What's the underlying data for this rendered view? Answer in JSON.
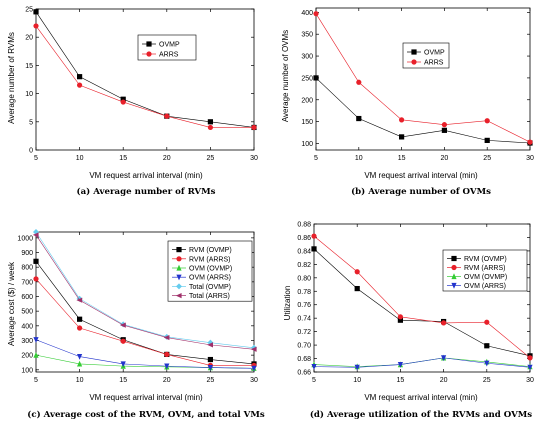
{
  "chart_data": [
    {
      "type": "line",
      "id": "a",
      "caption": "(a) Average number of RVMs",
      "xlabel": "VM request arrival interval (min)",
      "ylabel": "Average number of RVMs",
      "x": [
        5,
        10,
        15,
        20,
        25,
        30
      ],
      "xlim": [
        5,
        30
      ],
      "xticks": [
        5,
        10,
        15,
        20,
        25,
        30
      ],
      "ylim": [
        0,
        25
      ],
      "yticks": [
        0,
        5,
        10,
        15,
        20,
        25
      ],
      "legend_position": "top-right",
      "grid": false,
      "series": [
        {
          "name": "OVMP",
          "values": [
            24.5,
            13,
            9,
            6,
            5,
            4
          ],
          "color": "#000000",
          "marker": "square"
        },
        {
          "name": "ARRS",
          "values": [
            22,
            11.5,
            8.5,
            6,
            4,
            4
          ],
          "color": "#e8202a",
          "marker": "circle"
        }
      ]
    },
    {
      "type": "line",
      "id": "b",
      "caption": "(b) Average number of OVMs",
      "xlabel": "VM request arrival interval (min)",
      "ylabel": "Average number of OVMs",
      "x": [
        5,
        10,
        15,
        20,
        25,
        30
      ],
      "xlim": [
        5,
        30
      ],
      "xticks": [
        5,
        10,
        15,
        20,
        25,
        30
      ],
      "ylim": [
        85,
        410
      ],
      "yticks": [
        100,
        150,
        200,
        250,
        300,
        350,
        400
      ],
      "legend_position": "top-right",
      "grid": false,
      "series": [
        {
          "name": "OVMP",
          "values": [
            250,
            157,
            115,
            130,
            107,
            101
          ],
          "color": "#000000",
          "marker": "square"
        },
        {
          "name": "ARRS",
          "values": [
            397,
            240,
            154,
            143,
            152,
            103
          ],
          "color": "#e8202a",
          "marker": "circle"
        }
      ]
    },
    {
      "type": "line",
      "id": "c",
      "caption": "(c) Average cost of the RVM, OVM, and total VMs",
      "xlabel": "VM request arrival interval (min)",
      "ylabel": "Average cost ($) / week",
      "x": [
        5,
        10,
        15,
        20,
        25,
        30
      ],
      "xlim": [
        5,
        30
      ],
      "xticks": [
        5,
        10,
        15,
        20,
        25,
        30
      ],
      "ylim": [
        85,
        1040
      ],
      "yticks": [
        100,
        200,
        300,
        400,
        500,
        600,
        700,
        800,
        900,
        1000
      ],
      "legend_position": "top-right",
      "grid": false,
      "series": [
        {
          "name": "RVM (OVMP)",
          "values": [
            840,
            445,
            305,
            205,
            170,
            140
          ],
          "color": "#000000",
          "marker": "square"
        },
        {
          "name": "RVM (ARRS)",
          "values": [
            720,
            385,
            295,
            205,
            130,
            130
          ],
          "color": "#e8202a",
          "marker": "circle"
        },
        {
          "name": "OVM (OVMP)",
          "values": [
            200,
            140,
            125,
            120,
            115,
            110
          ],
          "color": "#33cc33",
          "marker": "triangle-up"
        },
        {
          "name": "OVM (ARRS)",
          "values": [
            305,
            190,
            140,
            125,
            115,
            110
          ],
          "color": "#2233cc",
          "marker": "triangle-down"
        },
        {
          "name": "Total (OVMP)",
          "values": [
            1040,
            585,
            410,
            325,
            285,
            250
          ],
          "color": "#66ccee",
          "marker": "diamond"
        },
        {
          "name": "Total (ARRS)",
          "values": [
            1020,
            575,
            405,
            320,
            270,
            240
          ],
          "color": "#a0306a",
          "marker": "triangle-left"
        }
      ]
    },
    {
      "type": "line",
      "id": "d",
      "caption": "(d) Average utilization of the RVMs and OVMs",
      "xlabel": "VM request arrival interval (min)",
      "ylabel": "Utilization",
      "x": [
        5,
        10,
        15,
        20,
        25,
        30
      ],
      "xlim": [
        5,
        30
      ],
      "xticks": [
        5,
        10,
        15,
        20,
        25,
        30
      ],
      "ylim": [
        0.66,
        0.88
      ],
      "yticks": [
        0.66,
        0.68,
        0.7,
        0.72,
        0.74,
        0.76,
        0.78,
        0.8,
        0.82,
        0.84,
        0.86,
        0.88
      ],
      "legend_position": "top-right",
      "grid": false,
      "series": [
        {
          "name": "RVM (OVMP)",
          "values": [
            0.843,
            0.784,
            0.737,
            0.735,
            0.699,
            0.684
          ],
          "color": "#000000",
          "marker": "square"
        },
        {
          "name": "RVM (ARRS)",
          "values": [
            0.862,
            0.809,
            0.742,
            0.733,
            0.734,
            0.681
          ],
          "color": "#e8202a",
          "marker": "circle"
        },
        {
          "name": "OVM (OVMP)",
          "values": [
            0.671,
            0.668,
            0.671,
            0.681,
            0.675,
            0.668
          ],
          "color": "#33cc33",
          "marker": "triangle-up"
        },
        {
          "name": "OVM (ARRS)",
          "values": [
            0.668,
            0.667,
            0.671,
            0.681,
            0.673,
            0.667
          ],
          "color": "#2233cc",
          "marker": "triangle-down"
        }
      ]
    }
  ]
}
